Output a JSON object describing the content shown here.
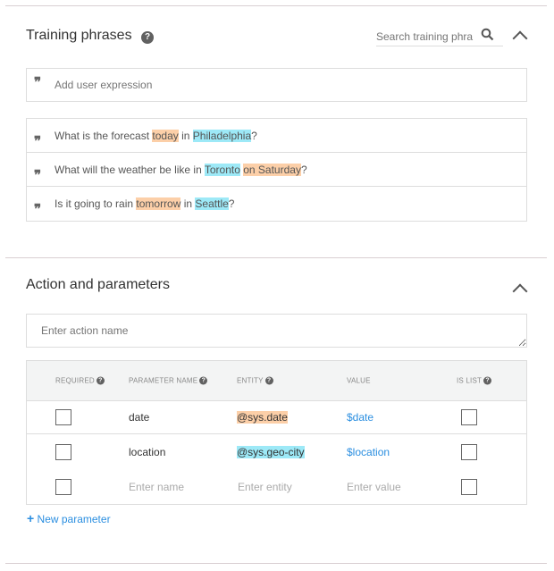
{
  "training": {
    "title": "Training phrases",
    "search_placeholder": "Search training phra",
    "add_placeholder": "Add user expression",
    "phrases": [
      [
        {
          "t": "What is the forecast ",
          "k": ""
        },
        {
          "t": "today",
          "k": "date"
        },
        {
          "t": " in ",
          "k": ""
        },
        {
          "t": "Philadelphia",
          "k": "geo"
        },
        {
          "t": "?",
          "k": ""
        }
      ],
      [
        {
          "t": "What will the weather be like in ",
          "k": ""
        },
        {
          "t": "Toronto",
          "k": "geo"
        },
        {
          "t": " ",
          "k": ""
        },
        {
          "t": "on Saturday",
          "k": "date"
        },
        {
          "t": "?",
          "k": ""
        }
      ],
      [
        {
          "t": "Is it going to rain ",
          "k": ""
        },
        {
          "t": "tomorrow",
          "k": "date"
        },
        {
          "t": " in ",
          "k": ""
        },
        {
          "t": "Seattle",
          "k": "geo"
        },
        {
          "t": "?",
          "k": ""
        }
      ]
    ]
  },
  "action": {
    "title": "Action and parameters",
    "action_placeholder": "Enter action name",
    "columns": {
      "required": "REQUIRED",
      "name": "PARAMETER NAME",
      "entity": "ENTITY",
      "value": "VALUE",
      "is_list": "IS LIST"
    },
    "rows": [
      {
        "name": "date",
        "entity": "@sys.date",
        "entity_kind": "date",
        "value": "$date",
        "required": false,
        "is_list": false
      },
      {
        "name": "location",
        "entity": "@sys.geo-city",
        "entity_kind": "geo",
        "value": "$location",
        "required": false,
        "is_list": false
      }
    ],
    "new_row": {
      "name_placeholder": "Enter name",
      "entity_placeholder": "Enter entity",
      "value_placeholder": "Enter value"
    },
    "new_parameter": "New parameter"
  },
  "colors": {
    "date_highlight": "#fccfa8",
    "geo_highlight": "#9de9f7",
    "link": "#2a8ee0"
  },
  "icons": [
    "help-icon",
    "search-icon",
    "chevron-up-icon",
    "quote-icon",
    "plus-icon"
  ]
}
